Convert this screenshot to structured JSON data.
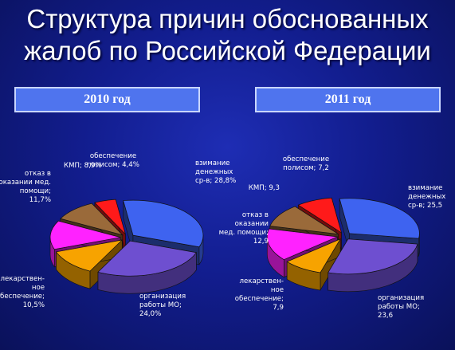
{
  "title_lines": [
    "Структура причин обоснованных",
    "жалоб по Российской Федерации"
  ],
  "colors": {
    "vzimanie": "#3e63f0",
    "organizacia": "#6e4fd0",
    "lekarstvennoe": "#f7a300",
    "otkaz": "#ff22ff",
    "kmp": "#9a6a3a",
    "obespechenie": "#ff1a1a"
  },
  "chart_data": [
    {
      "type": "pie",
      "title": "2010 год",
      "slices": [
        {
          "name": "взимание денежных ср-в",
          "value": 28.8,
          "label_lines": [
            "взимание",
            "денежных",
            "ср-в; 28,8%"
          ],
          "color_key": "vzimanie"
        },
        {
          "name": "организация работы МО",
          "value": 24.0,
          "label_lines": [
            "организация",
            "работы МО;",
            "24,0%"
          ],
          "color_key": "organizacia"
        },
        {
          "name": "лекарственное обеспечение",
          "value": 10.5,
          "label_lines": [
            "лекарствен-",
            "ное",
            "обеспечение;",
            "10,5%"
          ],
          "color_key": "lekarstvennoe"
        },
        {
          "name": "отказ в оказании мед. помощи",
          "value": 11.7,
          "label_lines": [
            "отказ в",
            "оказании мед.",
            "помощи;",
            "11,7%"
          ],
          "color_key": "otkaz"
        },
        {
          "name": "КМП",
          "value": 8.9,
          "label_lines": [
            "КМП; 8,9%"
          ],
          "color_key": "kmp"
        },
        {
          "name": "обеспечение полисом",
          "value": 4.4,
          "label_lines": [
            "обеспечение",
            "полисом; 4,4%"
          ],
          "color_key": "obespechenie"
        }
      ]
    },
    {
      "type": "pie",
      "title": "2011 год",
      "slices": [
        {
          "name": "взимание денежных ср-в",
          "value": 25.5,
          "label_lines": [
            "взимание",
            "денежных",
            "ср-в; 25,5"
          ],
          "color_key": "vzimanie"
        },
        {
          "name": "организация работы МО",
          "value": 23.6,
          "label_lines": [
            "организация",
            "работы МО;",
            "23,6"
          ],
          "color_key": "organizacia"
        },
        {
          "name": "лекарственное обеспечение",
          "value": 7.9,
          "label_lines": [
            "лекарствен-",
            "ное",
            "обеспечение;",
            "7,9"
          ],
          "color_key": "lekarstvennoe"
        },
        {
          "name": "отказ в оказании мед. помощи",
          "value": 12.9,
          "label_lines": [
            "отказ в",
            "оказании",
            "мед. помощи;",
            "12,9"
          ],
          "color_key": "otkaz"
        },
        {
          "name": "КМП",
          "value": 9.3,
          "label_lines": [
            "КМП; 9,3"
          ],
          "color_key": "kmp"
        },
        {
          "name": "обеспечение полисом",
          "value": 7.2,
          "label_lines": [
            "обеспечение",
            "полисом; 7,2"
          ],
          "color_key": "obespechenie"
        }
      ]
    }
  ]
}
